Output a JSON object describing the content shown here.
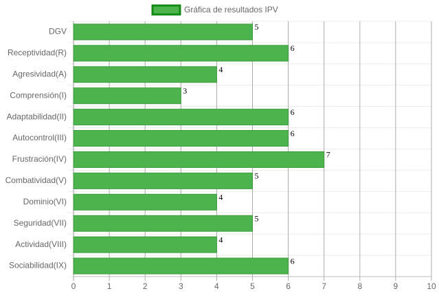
{
  "chart_data": {
    "type": "bar",
    "orientation": "horizontal",
    "series": [
      {
        "name": "Gráfica de resultados IPV",
        "color": "#4db34d",
        "border_color": "#138a13",
        "values": [
          5,
          6,
          4,
          3,
          6,
          6,
          7,
          5,
          4,
          5,
          4,
          6
        ]
      }
    ],
    "categories": [
      "DGV",
      "Receptividad(R)",
      "Agresividad(A)",
      "Comprensión(I)",
      "Adaptabilidad(II)",
      "Autocontrol(III)",
      "Frustración(IV)",
      "Combatividad(V)",
      "Dominio(VI)",
      "Seguridad(VII)",
      "Actividad(VIII)",
      "Sociabilidad(IX)"
    ],
    "xlim": [
      0,
      10
    ],
    "xticks": [
      0,
      1,
      2,
      3,
      4,
      5,
      6,
      7,
      8,
      9,
      10
    ],
    "grid": true,
    "legend": "top"
  }
}
